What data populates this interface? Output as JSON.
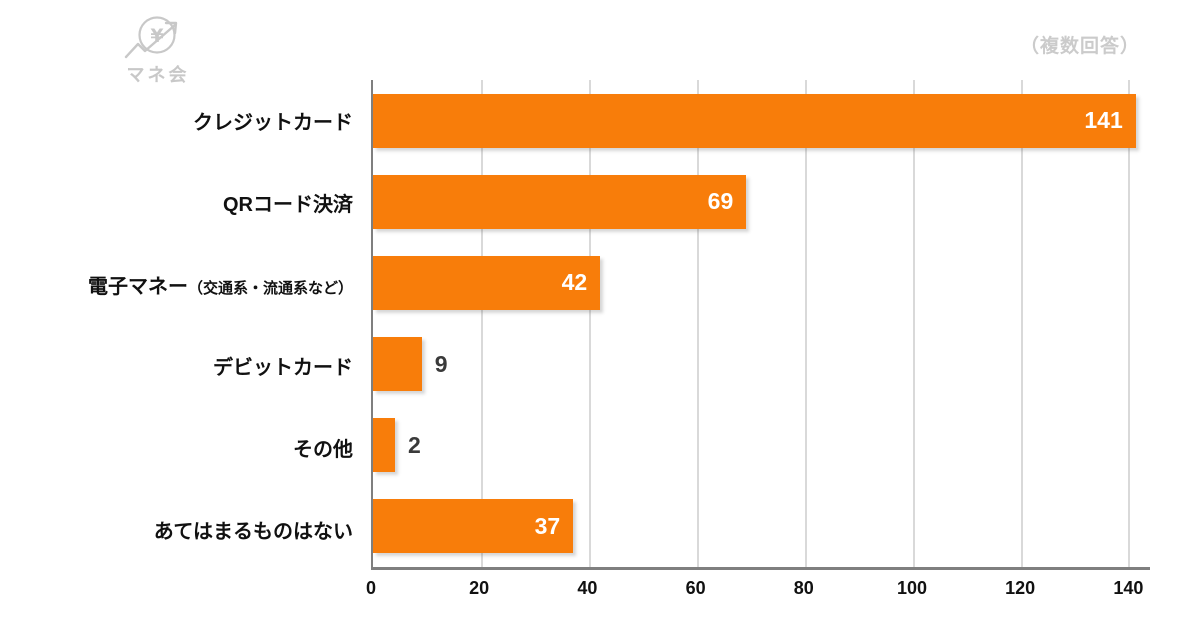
{
  "logo": {
    "brand": "マネ会",
    "icon": "yen-coin-growth-arrow-icon",
    "color": "#c8c8c8"
  },
  "annotation": "（複数回答）",
  "chart_data": {
    "type": "bar",
    "orientation": "horizontal",
    "title": "",
    "xlabel": "",
    "ylabel": "",
    "categories": [
      {
        "label": "クレジットカード",
        "sub": ""
      },
      {
        "label": "QRコード決済",
        "sub": ""
      },
      {
        "label": "電子マネー",
        "sub": "（交通系・流通系など）"
      },
      {
        "label": "デビットカード",
        "sub": ""
      },
      {
        "label": "その他",
        "sub": ""
      },
      {
        "label": "あてはまるものはない",
        "sub": ""
      }
    ],
    "values": [
      141,
      69,
      42,
      9,
      2,
      37
    ],
    "x_ticks": [
      0,
      20,
      40,
      60,
      80,
      100,
      120,
      140
    ],
    "xlim": [
      0,
      144
    ],
    "grid": true,
    "legend": "none",
    "bar_color": "#f87d0a",
    "gridline_color": "#d9d9d9",
    "axis_color": "#7f7f7f",
    "value_label_inside_color": "#ffffff",
    "value_label_outside_color": "#3a3a3a"
  }
}
